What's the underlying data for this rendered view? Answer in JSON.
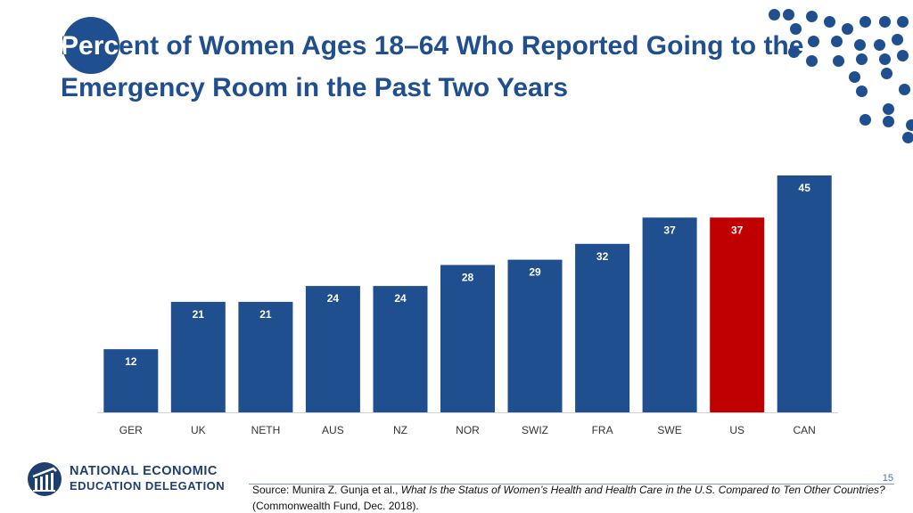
{
  "title": "Percent of Women Ages 18–64 Who Reported Going to the Emergency Room in the Past Two Years",
  "colors": {
    "primary": "#1f4f8f",
    "highlight": "#c00000",
    "axis": "#d0d0d0"
  },
  "chart_data": {
    "type": "bar",
    "title": "Percent of Women Ages 18–64 Who Reported Going to the Emergency Room in the Past Two Years",
    "categories": [
      "GER",
      "UK",
      "NETH",
      "AUS",
      "NZ",
      "NOR",
      "SWIZ",
      "FRA",
      "SWE",
      "US",
      "CAN"
    ],
    "values": [
      12,
      21,
      21,
      24,
      24,
      28,
      29,
      32,
      37,
      37,
      45
    ],
    "highlight": "US",
    "xlabel": "",
    "ylabel": "",
    "ylim": [
      0,
      45
    ],
    "grid": false,
    "legend": false
  },
  "logo": {
    "line1": "NATIONAL ECONOMIC",
    "line2": "EDUCATION DELEGATION"
  },
  "footer": {
    "page_number": "15",
    "source_prefix": "Source: Munira Z. Gunja et al., ",
    "source_title": "What Is the Status of Women’s Health and Health Care in the U.S. Compared to Ten Other Countries?",
    "source_suffix": " (Commonwealth Fund, Dec. 2018)."
  }
}
